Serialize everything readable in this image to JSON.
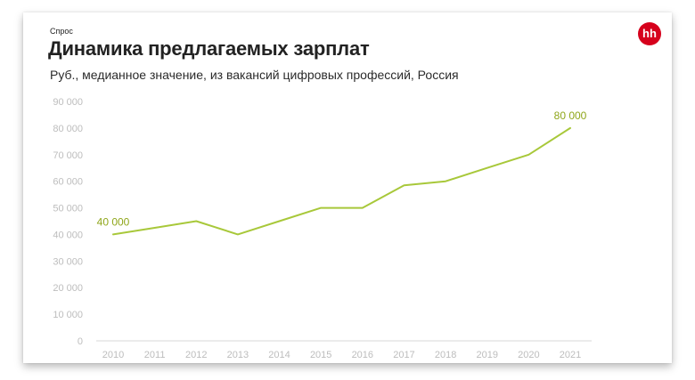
{
  "header": {
    "section_label": "Спрос",
    "title": "Динамика предлагаемых зарплат",
    "subtitle": "Руб., медианное значение, из вакансий цифровых профессий, Россия",
    "logo_text": "hh"
  },
  "colors": {
    "line": "#a8c83a",
    "label": "#8fa61a",
    "ticks": "#bdbdbd",
    "axis": "#d9d9d9",
    "logo_bg": "#d6001c"
  },
  "chart_data": {
    "type": "line",
    "title": "",
    "xlabel": "",
    "ylabel": "",
    "x": [
      "2010",
      "2011",
      "2012",
      "2013",
      "2014",
      "2015",
      "2016",
      "2017",
      "2018",
      "2019",
      "2020",
      "2021"
    ],
    "series": [
      {
        "values": [
          40000,
          42500,
          45000,
          40000,
          45000,
          50000,
          50000,
          58500,
          60000,
          65000,
          70000,
          80000
        ]
      }
    ],
    "ylim": [
      0,
      90000
    ],
    "yticks": [
      0,
      10000,
      20000,
      30000,
      40000,
      50000,
      60000,
      70000,
      80000,
      90000
    ],
    "ytick_labels": [
      "0",
      "10 000",
      "20 000",
      "30 000",
      "40 000",
      "50 000",
      "60 000",
      "70 000",
      "80 000",
      "90 000"
    ],
    "annotations": [
      {
        "x": "2010",
        "text": "40 000"
      },
      {
        "x": "2021",
        "text": "80 000"
      }
    ],
    "grid": false,
    "legend": "none"
  }
}
